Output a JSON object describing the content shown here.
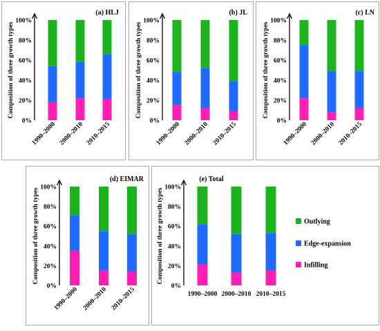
{
  "colors": {
    "infilling": "#ff1fb4",
    "edge_expansion": "#1f6bff",
    "outlying": "#1cb41c"
  },
  "chart_data": [
    {
      "type": "bar",
      "stacked": true,
      "title": "(a) HLJ",
      "ylabel": "Composition of three growth types",
      "yticks": [
        "0%",
        "20%",
        "40%",
        "60%",
        "80%",
        "100%"
      ],
      "ylim": [
        0,
        100
      ],
      "categories": [
        "1990–2000",
        "2000–2010",
        "2010–2015"
      ],
      "series": [
        {
          "key": "infilling",
          "values": [
            18,
            22,
            21
          ]
        },
        {
          "key": "edge_expansion",
          "values": [
            36,
            36,
            45
          ]
        },
        {
          "key": "outlying",
          "values": [
            46,
            42,
            34
          ]
        }
      ]
    },
    {
      "type": "bar",
      "stacked": true,
      "title": "(b) JL",
      "ylabel": "Composition of three growth types",
      "yticks": [
        "0%",
        "20%",
        "40%",
        "60%",
        "80%",
        "100%"
      ],
      "ylim": [
        0,
        100
      ],
      "categories": [
        "1990–2000",
        "2000–2010",
        "2010–2015"
      ],
      "series": [
        {
          "key": "infilling",
          "values": [
            15,
            12,
            9
          ]
        },
        {
          "key": "edge_expansion",
          "values": [
            33,
            40,
            30
          ]
        },
        {
          "key": "outlying",
          "values": [
            52,
            48,
            61
          ]
        }
      ]
    },
    {
      "type": "bar",
      "stacked": true,
      "title": "(c) LN",
      "ylabel": "Composition of three growth types",
      "yticks": [
        "0%",
        "20%",
        "40%",
        "60%",
        "80%",
        "100%"
      ],
      "ylim": [
        0,
        100
      ],
      "categories": [
        "1990–2000",
        "2000–2010",
        "2010–2015"
      ],
      "series": [
        {
          "key": "infilling",
          "values": [
            22,
            8,
            12
          ]
        },
        {
          "key": "edge_expansion",
          "values": [
            53,
            41,
            37
          ]
        },
        {
          "key": "outlying",
          "values": [
            25,
            51,
            51
          ]
        }
      ]
    },
    {
      "type": "bar",
      "stacked": true,
      "title": "(d) EIMAR",
      "ylabel": "Composition of three growth types",
      "yticks": [
        "0%",
        "20%",
        "40%",
        "60%",
        "80%",
        "100%"
      ],
      "ylim": [
        0,
        100
      ],
      "categories": [
        "1990–2000",
        "2000–2010",
        "2010–2015"
      ],
      "series": [
        {
          "key": "infilling",
          "values": [
            35,
            15,
            14
          ]
        },
        {
          "key": "edge_expansion",
          "values": [
            36,
            40,
            38
          ]
        },
        {
          "key": "outlying",
          "values": [
            29,
            45,
            48
          ]
        }
      ]
    },
    {
      "type": "bar",
      "stacked": true,
      "title": "(e) Total",
      "ylabel": "Composition of three growth types",
      "yticks": [
        "0%",
        "20%",
        "40%",
        "60%",
        "80%",
        "100%"
      ],
      "ylim": [
        0,
        100
      ],
      "categories": [
        "1990–2000",
        "2000–2010",
        "2010–2015"
      ],
      "legend": [
        {
          "key": "outlying",
          "label": "Outlying"
        },
        {
          "key": "edge_expansion",
          "label": "Edge-expansion"
        },
        {
          "key": "infilling",
          "label": "Infilling"
        }
      ],
      "legend_position": "right",
      "series": [
        {
          "key": "infilling",
          "values": [
            21,
            13,
            15
          ]
        },
        {
          "key": "edge_expansion",
          "values": [
            41,
            39,
            38
          ]
        },
        {
          "key": "outlying",
          "values": [
            38,
            48,
            47
          ]
        }
      ]
    }
  ]
}
